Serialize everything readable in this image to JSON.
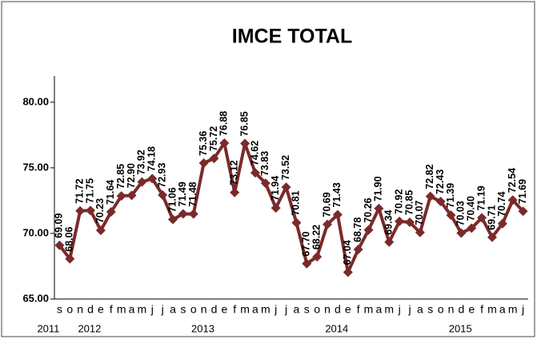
{
  "chart_data": {
    "type": "line",
    "title": "IMCE TOTAL",
    "categories": [
      "s",
      "o",
      "n",
      "d",
      "e",
      "f",
      "m",
      "a",
      "m",
      "j",
      "j",
      "a",
      "s",
      "o",
      "n",
      "d",
      "e",
      "f",
      "m",
      "a",
      "m",
      "j",
      "j",
      "a",
      "s",
      "o",
      "n",
      "d",
      "e",
      "f",
      "m",
      "a",
      "m",
      "j",
      "j",
      "a",
      "s",
      "o",
      "n",
      "d",
      "e",
      "f",
      "m",
      "a",
      "m",
      "j"
    ],
    "years": [
      "2011",
      null,
      null,
      null,
      "2012",
      null,
      null,
      null,
      null,
      null,
      null,
      null,
      null,
      null,
      null,
      "2013",
      null,
      null,
      null,
      null,
      null,
      null,
      null,
      null,
      null,
      null,
      null,
      null,
      "2014",
      null,
      null,
      null,
      null,
      null,
      null,
      null,
      null,
      null,
      null,
      null,
      "2015",
      null,
      null,
      null,
      null,
      null
    ],
    "series": [
      {
        "name": "IMCE TOTAL",
        "color": "#7b2a2a",
        "values": [
          69.09,
          68.06,
          71.72,
          71.75,
          70.23,
          71.64,
          72.85,
          72.9,
          73.92,
          74.18,
          72.93,
          71.06,
          71.49,
          71.48,
          75.36,
          75.72,
          76.88,
          73.12,
          76.85,
          74.62,
          73.83,
          71.94,
          73.52,
          70.81,
          67.7,
          68.22,
          70.69,
          71.43,
          67.04,
          68.78,
          70.26,
          71.9,
          69.34,
          70.92,
          70.85,
          70.07,
          72.82,
          72.43,
          71.39,
          70.03,
          70.4,
          71.19,
          69.71,
          70.74,
          72.54,
          71.69
        ],
        "value_labels": [
          "69.09",
          "68.06",
          "71.72",
          "71.75",
          "70.23",
          "71.64",
          "72.85",
          "72.90",
          "73.92",
          "74.18",
          "72.93",
          "71.06",
          "71.49",
          "71.48",
          "75.36",
          "75.72",
          "76.88",
          "73.12",
          "76.85",
          "74.62",
          "73.83",
          "71.94",
          "73.52",
          "70.81",
          "67.70",
          "68.22",
          "70.69",
          "71.43",
          "67.04",
          "68.78",
          "70.26",
          "71.90",
          "69.34",
          "70.92",
          "70.85",
          "70.07",
          "72.82",
          "72.43",
          "71.39",
          "70.03",
          "70.40",
          "71.19",
          "69.71",
          "70.74",
          "72.54",
          "71.69"
        ]
      }
    ],
    "ylim": [
      65,
      82
    ],
    "yticks": [
      {
        "value": 65,
        "label": "65.00"
      },
      {
        "value": 70,
        "label": "70.00"
      },
      {
        "value": 75,
        "label": "75.00"
      },
      {
        "value": 80,
        "label": "80.00"
      }
    ]
  }
}
